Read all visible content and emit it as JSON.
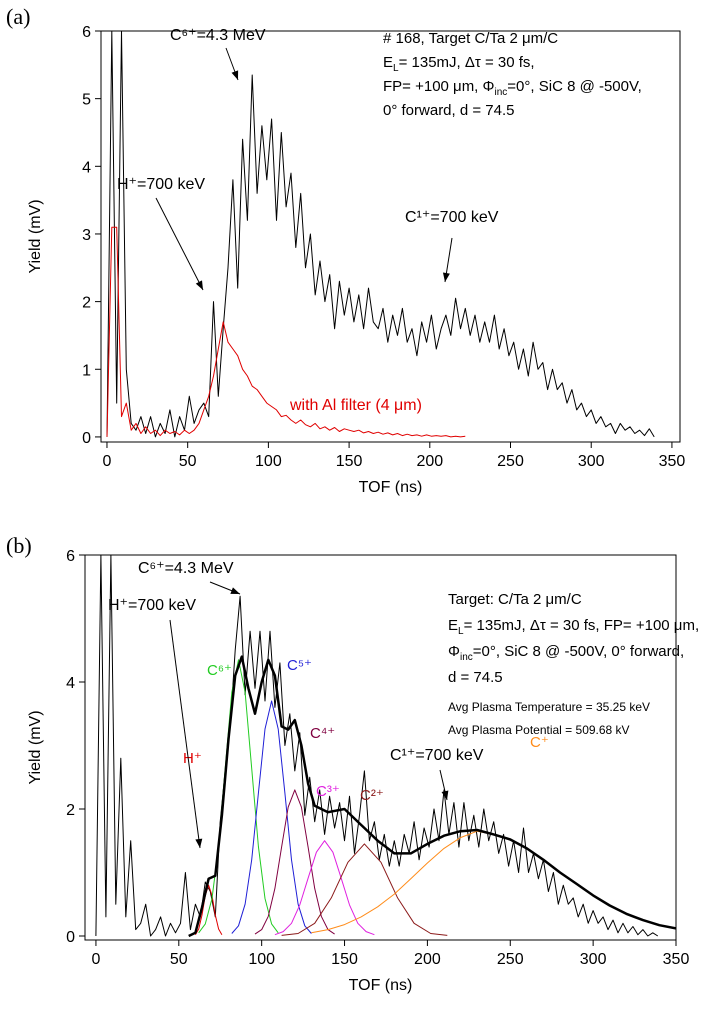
{
  "chart_data": [
    {
      "type": "line",
      "label": "(a)",
      "xlabel": "TOF (ns)",
      "ylabel": "Yield (mV)",
      "xlim": [
        -3.7,
        355
      ],
      "ylim": [
        -0.075,
        6
      ],
      "xticks": [
        0,
        50,
        100,
        150,
        200,
        250,
        300,
        350
      ],
      "yticks": [
        0,
        1,
        2,
        3,
        4,
        5,
        6
      ],
      "x": [
        0,
        3,
        6,
        9,
        12,
        15,
        18,
        21,
        24,
        27,
        30,
        33,
        36,
        39,
        42,
        45,
        48,
        51,
        54,
        57,
        60,
        63,
        66,
        69,
        72,
        75,
        78,
        81,
        84,
        87,
        90,
        93,
        96,
        99,
        102,
        105,
        108,
        111,
        114,
        117,
        120,
        123,
        126,
        129,
        132,
        135,
        138,
        141,
        144,
        147,
        150,
        153,
        156,
        159,
        162,
        165,
        168,
        171,
        174,
        177,
        180,
        183,
        186,
        189,
        192,
        195,
        198,
        201,
        204,
        207,
        210,
        213,
        216,
        219,
        222,
        225,
        228,
        231,
        234,
        237,
        240,
        243,
        246,
        249,
        252,
        255,
        258,
        261,
        264,
        267,
        270,
        273,
        276,
        279,
        282,
        285,
        288,
        291,
        294,
        297,
        300,
        303,
        306,
        309,
        312,
        315,
        318,
        321,
        324,
        327,
        330,
        333,
        336,
        339
      ],
      "series": [
        {
          "color": "#000000",
          "values": [
            0,
            6,
            0.5,
            6,
            1.0,
            0.2,
            0.1,
            0.3,
            0.05,
            0.3,
            0,
            0.2,
            0.05,
            0.4,
            0,
            0.3,
            0.1,
            0.6,
            0.2,
            0.4,
            0.5,
            0.3,
            2.0,
            0.6,
            1.6,
            2.5,
            3.8,
            2.2,
            4.4,
            3.2,
            5.35,
            3.6,
            4.6,
            3.8,
            4.7,
            3.2,
            4.5,
            3.4,
            3.9,
            2.8,
            3.6,
            2.5,
            3.0,
            2.1,
            2.6,
            2.0,
            2.4,
            1.6,
            2.3,
            1.8,
            2.2,
            1.7,
            2.1,
            1.6,
            2.2,
            1.7,
            1.6,
            1.9,
            1.4,
            1.8,
            1.5,
            1.9,
            1.4,
            1.6,
            1.2,
            1.7,
            1.4,
            1.8,
            1.3,
            1.6,
            1.8,
            1.5,
            2.05,
            1.6,
            1.9,
            1.5,
            1.8,
            1.4,
            1.7,
            1.4,
            1.8,
            1.3,
            1.6,
            1.2,
            1.4,
            1.0,
            1.3,
            0.9,
            1.4,
            1.0,
            1.1,
            0.7,
            1.0,
            0.7,
            0.8,
            0.5,
            0.7,
            0.4,
            0.5,
            0.3,
            0.4,
            0.2,
            0.3,
            0.15,
            0.2,
            0.05,
            0.2,
            0.1,
            0.15,
            0.05,
            0.1,
            0.02,
            0.12,
            0
          ]
        },
        {
          "name": "with Al filter (4 μm)",
          "color": "#e00000",
          "values": [
            0,
            3.1,
            3.1,
            0.3,
            0.5,
            0.1,
            0.2,
            0.05,
            0.15,
            0.05,
            0.1,
            0.02,
            0.1,
            0.05,
            0.08,
            0.03,
            0.1,
            0.05,
            0.1,
            0.2,
            0.4,
            0.6,
            0.9,
            1.3,
            1.7,
            1.4,
            1.3,
            1.2,
            1.0,
            0.9,
            0.75,
            0.7,
            0.6,
            0.5,
            0.45,
            0.4,
            0.3,
            0.32,
            0.25,
            0.2,
            0.25,
            0.18,
            0.15,
            0.2,
            0.12,
            0.15,
            0.1,
            0.14,
            0.08,
            0.12,
            0.1,
            0.08,
            0.1,
            0.06,
            0.08,
            0.05,
            0.07,
            0.04,
            0.06,
            0.03,
            0.05,
            0.02,
            0.04,
            0.02,
            0.03,
            0.01,
            0.03,
            0.01,
            0.02,
            0.01,
            0.02,
            0,
            0.01,
            0,
            0.01,
            null,
            null,
            null,
            null,
            null,
            null,
            null,
            null,
            null,
            null,
            null,
            null,
            null,
            null,
            null,
            null,
            null,
            null,
            null,
            null,
            null,
            null,
            null,
            null,
            null,
            null,
            null,
            null,
            null,
            null,
            null,
            null,
            null,
            null,
            null,
            null,
            null,
            null,
            null
          ]
        }
      ],
      "annotations": [
        {
          "text": "C⁶⁺=4.3 MeV"
        },
        {
          "text": "H⁺=700 keV"
        },
        {
          "text": "C¹⁺=700 keV"
        }
      ],
      "info": [
        [
          {
            "text": "# 168, Target C/Ta 2 μm/C"
          }
        ],
        [
          {
            "text": "E"
          },
          {
            "sub": "L"
          },
          {
            "text": "= 135mJ, Δτ = 30 fs,"
          }
        ],
        [
          {
            "text": "FP= +100 μm, Φ"
          },
          {
            "sub": "inc"
          },
          {
            "text": "=0°, SiC 8 @ -500V,"
          }
        ],
        [
          {
            "text": "0° forward, d = 74.5"
          }
        ]
      ]
    },
    {
      "type": "line",
      "label": "(b)",
      "xlabel": "TOF (ns)",
      "ylabel": "Yield (mV)",
      "xlim": [
        -6.6,
        350
      ],
      "ylim": [
        -0.063,
        6
      ],
      "xticks": [
        0,
        50,
        100,
        150,
        200,
        250,
        300,
        350
      ],
      "yticks": [
        0,
        2,
        4,
        6
      ],
      "x": [
        0,
        3,
        6,
        9,
        12,
        15,
        18,
        21,
        24,
        27,
        30,
        33,
        36,
        39,
        42,
        45,
        48,
        51,
        54,
        57,
        60,
        63,
        66,
        69,
        72,
        75,
        78,
        81,
        84,
        87,
        90,
        93,
        96,
        99,
        102,
        105,
        108,
        111,
        114,
        117,
        120,
        123,
        126,
        129,
        132,
        135,
        138,
        141,
        144,
        147,
        150,
        153,
        156,
        159,
        162,
        165,
        168,
        171,
        174,
        177,
        180,
        183,
        186,
        189,
        192,
        195,
        198,
        201,
        204,
        207,
        210,
        213,
        216,
        219,
        222,
        225,
        228,
        231,
        234,
        237,
        240,
        243,
        246,
        249,
        252,
        255,
        258,
        261,
        264,
        267,
        270,
        273,
        276,
        279,
        282,
        285,
        288,
        291,
        294,
        297,
        300,
        303,
        306,
        309,
        312,
        315,
        318,
        321,
        324,
        327,
        330,
        333,
        336,
        339
      ],
      "series": [
        {
          "color": "#000000",
          "values": [
            0,
            6,
            0.3,
            6,
            0.5,
            2.8,
            0.3,
            1.5,
            0.1,
            0.2,
            0.5,
            0,
            0.1,
            0.3,
            0,
            0.2,
            0.05,
            0.2,
            1.0,
            0.1,
            0.5,
            0.3,
            0.85,
            0.7,
            0.3,
            1.8,
            2.6,
            3.3,
            4.5,
            5.35,
            3.8,
            4.8,
            3.9,
            4.8,
            3.7,
            4.8,
            3.6,
            4.3,
            3.0,
            3.5,
            2.6,
            3.2,
            1.9,
            2.5,
            1.8,
            2.3,
            1.6,
            2.2,
            1.7,
            2.1,
            1.5,
            2.2,
            1.3,
            1.9,
            2.6,
            1.5,
            1.8,
            1.2,
            1.6,
            1.1,
            1.5,
            1.1,
            1.6,
            1.3,
            1.8,
            1.2,
            1.7,
            1.4,
            2.0,
            1.5,
            2.3,
            1.6,
            2.1,
            1.4,
            2.1,
            1.5,
            1.9,
            1.4,
            2.0,
            1.5,
            1.8,
            1.3,
            1.6,
            1.1,
            1.5,
            1.0,
            1.7,
            1.0,
            1.3,
            0.9,
            1.2,
            0.7,
            1.0,
            0.5,
            0.8,
            0.5,
            0.6,
            0.3,
            0.5,
            0.2,
            0.4,
            0.2,
            0.3,
            0.1,
            0.25,
            0.05,
            0.2,
            0.05,
            0.15,
            0.02,
            0.1,
            0,
            0.05,
            0
          ]
        },
        {
          "name": "H⁺",
          "color": "#e00000",
          "x": [
            60,
            62,
            64,
            66,
            68,
            70,
            72,
            74,
            76
          ],
          "values": [
            0.02,
            0.11,
            0.33,
            0.64,
            0.8,
            0.64,
            0.33,
            0.11,
            0.02
          ]
        },
        {
          "name": "C⁶⁺",
          "color": "#22cc22",
          "x": [
            62,
            66,
            70,
            74,
            78,
            82,
            86,
            90,
            94,
            98,
            102,
            106,
            110
          ],
          "values": [
            0.05,
            0.19,
            0.59,
            1.41,
            2.64,
            3.84,
            4.35,
            3.84,
            2.64,
            1.41,
            0.59,
            0.19,
            0.05
          ]
        },
        {
          "name": "C⁵⁺",
          "color": "#1f1fd6",
          "x": [
            82,
            86,
            90,
            94,
            98,
            102,
            106,
            110,
            114,
            118,
            122,
            126,
            130
          ],
          "values": [
            0.04,
            0.16,
            0.5,
            1.2,
            2.25,
            3.26,
            3.7,
            3.26,
            2.25,
            1.2,
            0.5,
            0.16,
            0.04
          ]
        },
        {
          "name": "C⁴⁺",
          "color": "#800040",
          "x": [
            96,
            100,
            104,
            108,
            112,
            116,
            120,
            124,
            128,
            132,
            136,
            140,
            144
          ],
          "values": [
            0.03,
            0.1,
            0.31,
            0.75,
            1.4,
            2.03,
            2.3,
            2.03,
            1.4,
            0.75,
            0.31,
            0.1,
            0.03
          ]
        },
        {
          "name": "C³⁺",
          "color": "#e020e0",
          "x": [
            108,
            113,
            118,
            123,
            128,
            133,
            138,
            143,
            148,
            153,
            158,
            163,
            168
          ],
          "values": [
            0.02,
            0.07,
            0.2,
            0.49,
            0.91,
            1.32,
            1.5,
            1.32,
            0.91,
            0.49,
            0.2,
            0.07,
            0.02
          ]
        },
        {
          "name": "C²⁺",
          "color": "#8b1a1a",
          "x": [
            112,
            122,
            132,
            142,
            152,
            162,
            172,
            182,
            192,
            202,
            212
          ],
          "values": [
            0.01,
            0.04,
            0.2,
            0.6,
            1.16,
            1.45,
            1.16,
            0.6,
            0.2,
            0.04,
            0.01
          ]
        },
        {
          "name": "C⁺",
          "color": "#ff8c1a",
          "x": [
            130,
            140,
            150,
            160,
            170,
            180,
            190,
            200,
            210,
            220,
            230,
            240,
            250,
            260,
            270,
            280,
            290,
            300,
            310,
            320,
            330,
            340,
            350
          ],
          "values": [
            0.05,
            0.1,
            0.18,
            0.3,
            0.46,
            0.66,
            0.9,
            1.15,
            1.38,
            1.55,
            1.65,
            1.6,
            1.52,
            1.38,
            1.2,
            1.0,
            0.82,
            0.64,
            0.48,
            0.35,
            0.25,
            0.17,
            0.12
          ]
        },
        {
          "color": "#000000",
          "linewidth": 2.5,
          "x": [
            56,
            60,
            64,
            68,
            72,
            76,
            80,
            84,
            88,
            92,
            96,
            100,
            104,
            108,
            112,
            116,
            120,
            124,
            128,
            132,
            140,
            150,
            160,
            170,
            180,
            190,
            200,
            210,
            220,
            230,
            240,
            250,
            260,
            270,
            280,
            290,
            300,
            310,
            320,
            330,
            340,
            350
          ],
          "values": [
            0,
            0.05,
            0.45,
            0.9,
            0.95,
            1.9,
            3.1,
            4.1,
            4.4,
            3.9,
            3.5,
            4.0,
            4.35,
            4.1,
            3.3,
            3.25,
            3.4,
            3.0,
            2.4,
            2.05,
            1.95,
            2.0,
            1.75,
            1.5,
            1.3,
            1.3,
            1.45,
            1.58,
            1.65,
            1.67,
            1.6,
            1.52,
            1.38,
            1.2,
            1.0,
            0.82,
            0.64,
            0.48,
            0.35,
            0.25,
            0.17,
            0.12
          ]
        }
      ],
      "annotations": [
        {
          "text": "C⁶⁺=4.3 MeV"
        },
        {
          "text": "H⁺=700 keV"
        },
        {
          "text": "C¹⁺=700 keV"
        }
      ],
      "info": [
        [
          {
            "text": "Target: C/Ta 2 μm/C"
          }
        ],
        [
          {
            "text": "E"
          },
          {
            "sub": "L"
          },
          {
            "text": "= 135mJ, Δτ = 30 fs, FP= +100 μm,"
          }
        ],
        [
          {
            "text": "Φ"
          },
          {
            "sub": "inc"
          },
          {
            "text": "=0°, SiC 8 @ -500V, 0° forward,"
          }
        ],
        [
          {
            "text": "d = 74.5"
          }
        ],
        [
          {
            "text": "Avg Plasma Temperature = 35.25 keV"
          }
        ],
        [
          {
            "text": "Avg Plasma Potential = 509.68 kV"
          }
        ]
      ]
    }
  ]
}
